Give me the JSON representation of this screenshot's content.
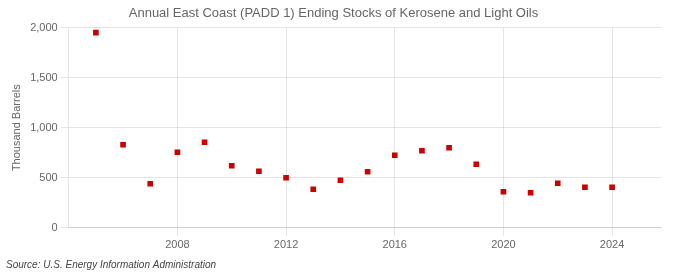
{
  "chart_data": {
    "type": "scatter",
    "title": "Annual East Coast (PADD 1) Ending Stocks of Kerosene and Light Oils",
    "ylabel": "Thousand Barrels",
    "source": "Source: U.S. Energy Information Administration",
    "x": [
      2005,
      2006,
      2007,
      2008,
      2009,
      2010,
      2011,
      2012,
      2013,
      2014,
      2015,
      2016,
      2017,
      2018,
      2019,
      2020,
      2021,
      2022,
      2023,
      2024
    ],
    "values": [
      1950,
      830,
      440,
      755,
      855,
      620,
      565,
      500,
      385,
      475,
      560,
      725,
      770,
      800,
      635,
      360,
      350,
      445,
      405,
      405
    ],
    "color": "#cc0000",
    "marker": "square",
    "xlim": [
      2004.0,
      2025.8
    ],
    "xticks": [
      2008,
      2012,
      2016,
      2020,
      2024
    ],
    "ylim": [
      0,
      2000
    ],
    "yticks": [
      0,
      500,
      {
        "value": 1000,
        "label": "1,000"
      },
      {
        "value": 1500,
        "label": "1,500"
      },
      {
        "value": 2000,
        "label": "2,000"
      }
    ],
    "grid": true
  }
}
